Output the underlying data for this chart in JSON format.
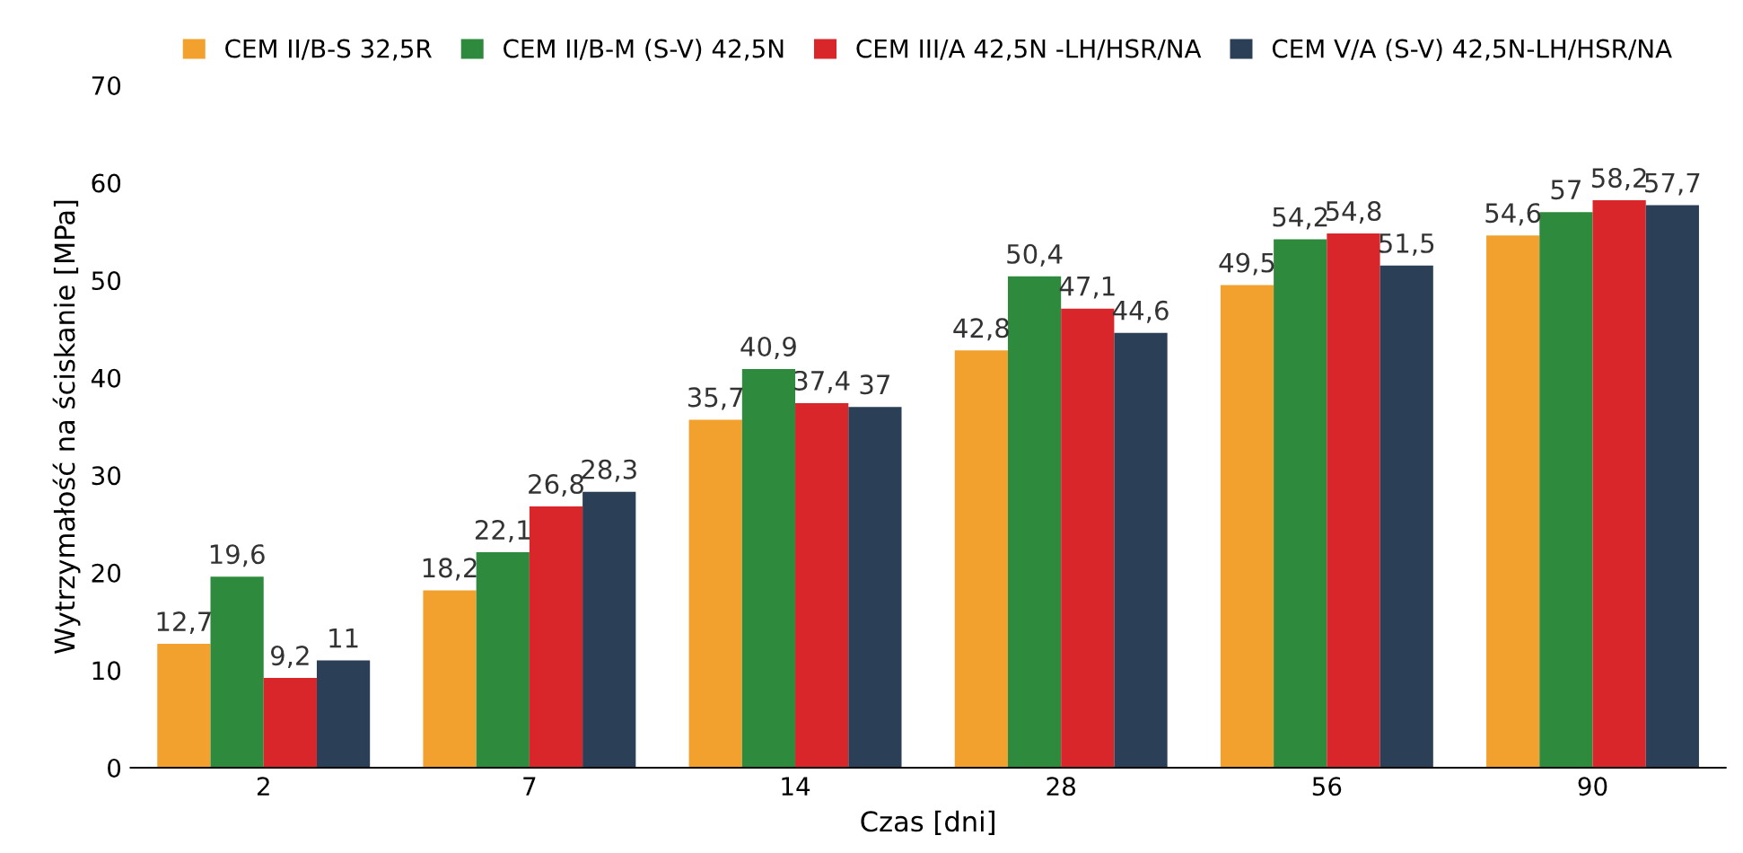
{
  "chart_data": {
    "type": "bar",
    "xlabel": "Czas [dni]",
    "ylabel": "Wytrzymałość na ściskanie [MPa]",
    "categories": [
      "2",
      "7",
      "14",
      "28",
      "56",
      "90"
    ],
    "series": [
      {
        "name": "CEM II/B-S 32,5R",
        "color": "#f2a12e",
        "values": [
          12.7,
          18.2,
          35.7,
          42.8,
          49.5,
          54.6
        ],
        "value_labels": [
          "12,7",
          "18,2",
          "35,7",
          "42,8",
          "49,5",
          "54,6"
        ]
      },
      {
        "name": "CEM II/B-M (S-V) 42,5N",
        "color": "#2e8a3c",
        "values": [
          19.6,
          22.1,
          40.9,
          50.4,
          54.2,
          57
        ],
        "value_labels": [
          "19,6",
          "22,1",
          "40,9",
          "50,4",
          "54,2",
          "57"
        ]
      },
      {
        "name": "CEM III/A 42,5N -LH/HSR/NA",
        "color": "#d8262b",
        "values": [
          9.2,
          26.8,
          37.4,
          47.1,
          54.8,
          58.2
        ],
        "value_labels": [
          "9,2",
          "26,8",
          "37,4",
          "47,1",
          "54,8",
          "58,2"
        ]
      },
      {
        "name": "CEM V/A (S-V) 42,5N-LH/HSR/NA",
        "color": "#2b3f56",
        "values": [
          11,
          28.3,
          37,
          44.6,
          51.5,
          57.7
        ],
        "value_labels": [
          "11",
          "28,3",
          "37",
          "44,6",
          "51,5",
          "57,7"
        ]
      }
    ],
    "ylim": [
      0,
      70
    ],
    "yticks": [
      0,
      10,
      20,
      30,
      40,
      50,
      60,
      70
    ],
    "grid": false,
    "legend": "top"
  }
}
